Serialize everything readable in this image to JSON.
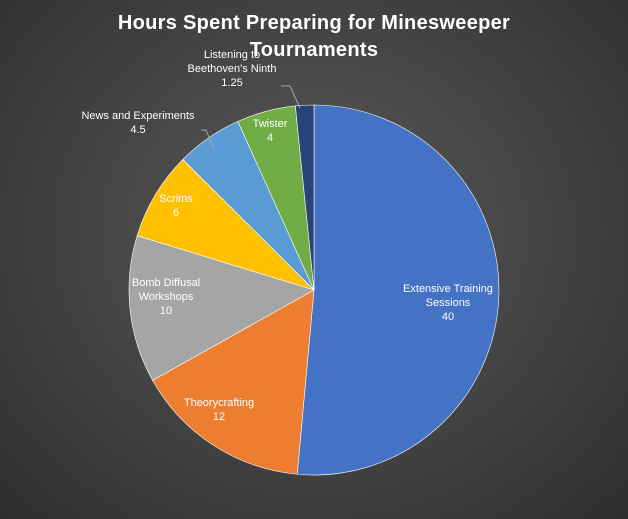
{
  "chart_data": {
    "type": "pie",
    "title": "Hours Spent Preparing for Minesweeper Tournaments",
    "legend": "none",
    "slices": [
      {
        "label": "Extensive Training Sessions",
        "value": 40,
        "value_text": "40",
        "color": "#4472c4"
      },
      {
        "label": "Theorycrafting",
        "value": 12,
        "value_text": "12",
        "color": "#ed7d31"
      },
      {
        "label": "Bomb Diffusal Workshops",
        "value": 10,
        "value_text": "10",
        "color": "#a5a5a5"
      },
      {
        "label": "Scrims",
        "value": 6,
        "value_text": "6",
        "color": "#ffc000"
      },
      {
        "label": "News and Experiments",
        "value": 4.5,
        "value_text": "4.5",
        "color": "#5b9bd5"
      },
      {
        "label": "Twister",
        "value": 4,
        "value_text": "4",
        "color": "#70ad47"
      },
      {
        "label": "Listening to Beethoven's Ninth",
        "value": 1.25,
        "value_text": "1.25",
        "color": "#264478"
      }
    ]
  }
}
